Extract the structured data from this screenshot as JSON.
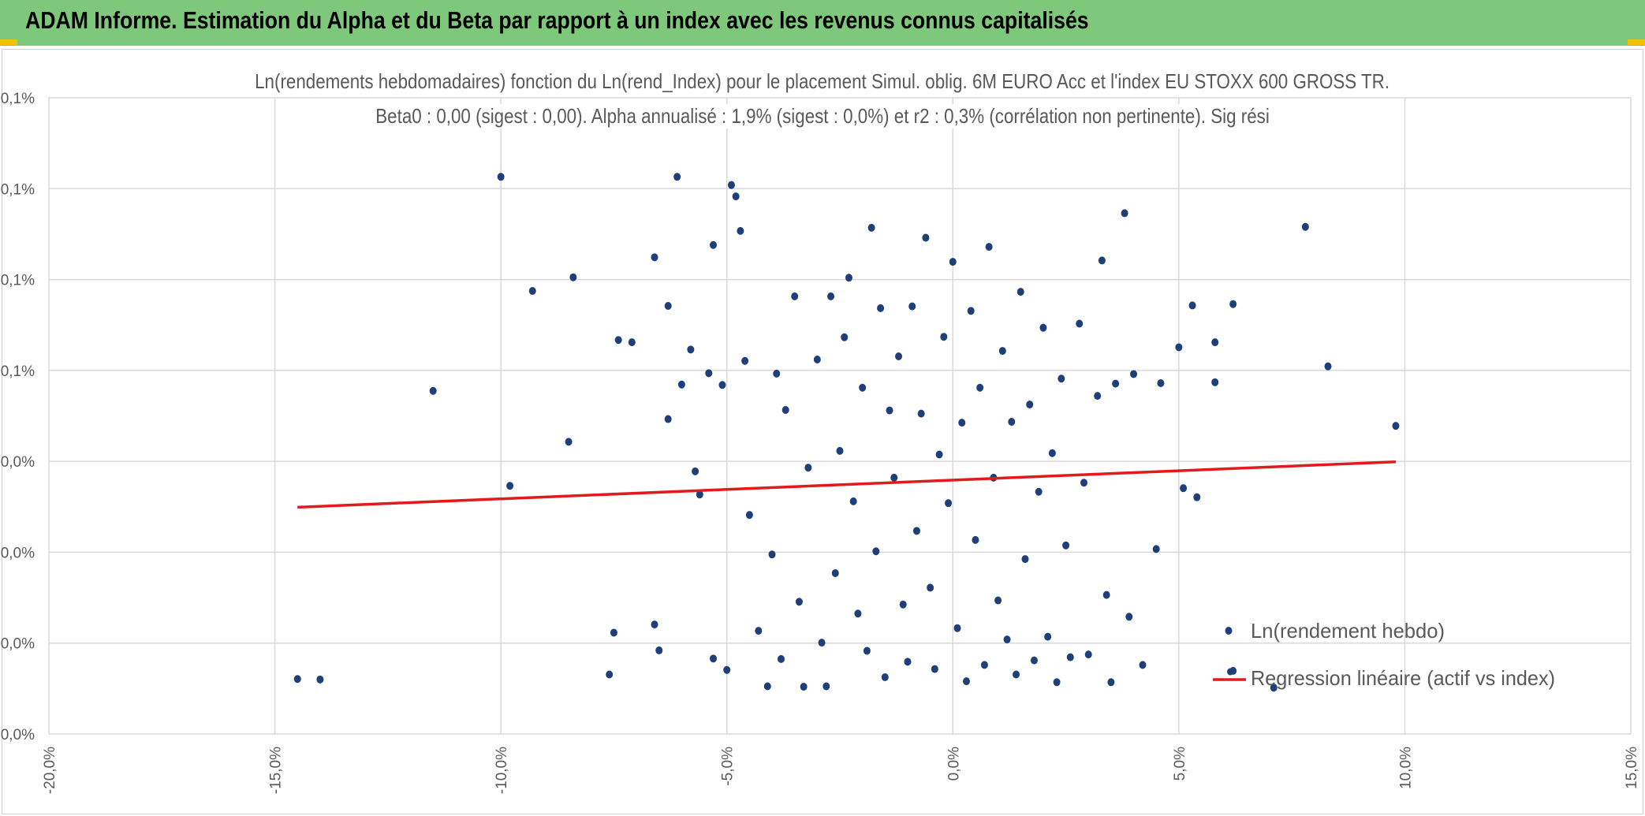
{
  "header": {
    "title": "ADAM Informe. Estimation du Alpha et du Beta par rapport à un index avec les revenus connus capitalisés",
    "background_color": "#7dc87a",
    "corner_color": "#f2c200"
  },
  "chart_data": {
    "type": "scatter",
    "title_line1": "Ln(rendements hebdomadaires) fonction du Ln(rend_Index) pour le placement Simul. oblig. 6M EURO Acc et l'index EU STOXX 600 GROSS TR.",
    "title_line2": "Beta0 : 0,00 (sigest : 0,00). Alpha annualisé : 1,9% (sigest : 0,0%) et r2 : 0,3% (corrélation non pertinente). Sig rési",
    "xlabel": "",
    "ylabel": "",
    "xlim": [
      -20,
      15
    ],
    "ylim": [
      0,
      0.14
    ],
    "x_ticks": [
      -20,
      -15,
      -10,
      -5,
      0,
      5,
      10,
      15
    ],
    "x_tick_labels": [
      "-20,0%",
      "-15,0%",
      "-10,0%",
      "-5,0%",
      "0,0%",
      "5,0%",
      "10,0%",
      "15,0%"
    ],
    "y_ticks": [
      0,
      0.02,
      0.04,
      0.06,
      0.08,
      0.1,
      0.12,
      0.14
    ],
    "y_tick_labels": [
      "0,0%",
      "0,0%",
      "0,0%",
      "0,0%",
      "0,1%",
      "0,1%",
      "0,1%",
      "0,1%"
    ],
    "grid": true,
    "legend_position": "bottom-right",
    "series": [
      {
        "name": "Ln(rendement hebdo)",
        "kind": "scatter",
        "color": "#1f3f78",
        "points": [
          [
            -14.5,
            0.0121
          ],
          [
            -14.0,
            0.012
          ],
          [
            -11.5,
            0.0755
          ],
          [
            -10.0,
            0.1226
          ],
          [
            -9.8,
            0.0546
          ],
          [
            -9.3,
            0.0975
          ],
          [
            -8.5,
            0.0643
          ],
          [
            -8.4,
            0.1005
          ],
          [
            -7.6,
            0.0131
          ],
          [
            -7.5,
            0.0223
          ],
          [
            -7.4,
            0.0867
          ],
          [
            -7.1,
            0.0862
          ],
          [
            -6.6,
            0.0241
          ],
          [
            -6.6,
            0.1049
          ],
          [
            -6.5,
            0.0184
          ],
          [
            -6.3,
            0.0693
          ],
          [
            -6.3,
            0.0942
          ],
          [
            -6.1,
            0.1226
          ],
          [
            -6.0,
            0.0769
          ],
          [
            -5.8,
            0.0846
          ],
          [
            -5.7,
            0.0578
          ],
          [
            -5.6,
            0.0527
          ],
          [
            -5.4,
            0.0794
          ],
          [
            -5.3,
            0.0166
          ],
          [
            -5.3,
            0.1076
          ],
          [
            -5.1,
            0.0768
          ],
          [
            -5.0,
            0.0141
          ],
          [
            -4.9,
            0.1208
          ],
          [
            -4.8,
            0.1183
          ],
          [
            -4.7,
            0.1107
          ],
          [
            -4.6,
            0.0821
          ],
          [
            -4.5,
            0.0482
          ],
          [
            -4.3,
            0.0227
          ],
          [
            -4.1,
            0.0105
          ],
          [
            -4.0,
            0.0395
          ],
          [
            -3.9,
            0.0793
          ],
          [
            -3.8,
            0.0165
          ],
          [
            -3.7,
            0.0713
          ],
          [
            -3.5,
            0.0963
          ],
          [
            -3.4,
            0.0291
          ],
          [
            -3.3,
            0.0104
          ],
          [
            -3.2,
            0.0586
          ],
          [
            -3.0,
            0.0824
          ],
          [
            -2.9,
            0.0201
          ],
          [
            -2.8,
            0.0105
          ],
          [
            -2.7,
            0.0963
          ],
          [
            -2.6,
            0.0354
          ],
          [
            -2.5,
            0.0623
          ],
          [
            -2.4,
            0.0873
          ],
          [
            -2.3,
            0.1004
          ],
          [
            -2.2,
            0.0512
          ],
          [
            -2.1,
            0.0265
          ],
          [
            -2.0,
            0.0762
          ],
          [
            -1.9,
            0.0183
          ],
          [
            -1.8,
            0.1114
          ],
          [
            -1.7,
            0.0402
          ],
          [
            -1.6,
            0.0937
          ],
          [
            -1.5,
            0.0125
          ],
          [
            -1.4,
            0.0712
          ],
          [
            -1.3,
            0.0564
          ],
          [
            -1.2,
            0.0831
          ],
          [
            -1.1,
            0.0285
          ],
          [
            -1.0,
            0.0159
          ],
          [
            -0.9,
            0.0941
          ],
          [
            -0.8,
            0.0447
          ],
          [
            -0.7,
            0.0705
          ],
          [
            -0.6,
            0.1092
          ],
          [
            -0.5,
            0.0322
          ],
          [
            -0.4,
            0.0143
          ],
          [
            -0.3,
            0.0615
          ],
          [
            -0.2,
            0.0874
          ],
          [
            -0.1,
            0.0508
          ],
          [
            0.0,
            0.1039
          ],
          [
            0.1,
            0.0233
          ],
          [
            0.2,
            0.0685
          ],
          [
            0.3,
            0.0116
          ],
          [
            0.4,
            0.0931
          ],
          [
            0.5,
            0.0427
          ],
          [
            0.6,
            0.0762
          ],
          [
            0.7,
            0.0152
          ],
          [
            0.8,
            0.1072
          ],
          [
            0.9,
            0.0564
          ],
          [
            1.0,
            0.0294
          ],
          [
            1.1,
            0.0843
          ],
          [
            1.2,
            0.0208
          ],
          [
            1.3,
            0.0687
          ],
          [
            1.4,
            0.0131
          ],
          [
            1.5,
            0.0973
          ],
          [
            1.6,
            0.0385
          ],
          [
            1.7,
            0.0725
          ],
          [
            1.8,
            0.0162
          ],
          [
            1.9,
            0.0533
          ],
          [
            2.0,
            0.0894
          ],
          [
            2.1,
            0.0214
          ],
          [
            2.2,
            0.0618
          ],
          [
            2.3,
            0.0114
          ],
          [
            2.4,
            0.0782
          ],
          [
            2.5,
            0.0415
          ],
          [
            2.6,
            0.0169
          ],
          [
            2.8,
            0.0903
          ],
          [
            2.9,
            0.0553
          ],
          [
            3.0,
            0.0175
          ],
          [
            3.2,
            0.0744
          ],
          [
            3.3,
            0.1042
          ],
          [
            3.4,
            0.0306
          ],
          [
            3.5,
            0.0114
          ],
          [
            3.6,
            0.0771
          ],
          [
            3.8,
            0.1146
          ],
          [
            3.9,
            0.0258
          ],
          [
            4.0,
            0.0792
          ],
          [
            4.2,
            0.0152
          ],
          [
            4.5,
            0.0407
          ],
          [
            4.6,
            0.0772
          ],
          [
            5.0,
            0.0851
          ],
          [
            5.1,
            0.0541
          ],
          [
            5.3,
            0.0943
          ],
          [
            5.4,
            0.0521
          ],
          [
            5.8,
            0.0774
          ],
          [
            5.8,
            0.0862
          ],
          [
            6.2,
            0.0139
          ],
          [
            6.2,
            0.0946
          ],
          [
            7.1,
            0.0102
          ],
          [
            7.8,
            0.1116
          ],
          [
            8.3,
            0.0809
          ],
          [
            9.8,
            0.0678
          ]
        ]
      },
      {
        "name": "Regression linéaire (actif vs index)",
        "kind": "line",
        "color": "#e31a1c",
        "x": [
          -14.5,
          9.8
        ],
        "y": [
          0.0499,
          0.0599
        ]
      }
    ]
  }
}
